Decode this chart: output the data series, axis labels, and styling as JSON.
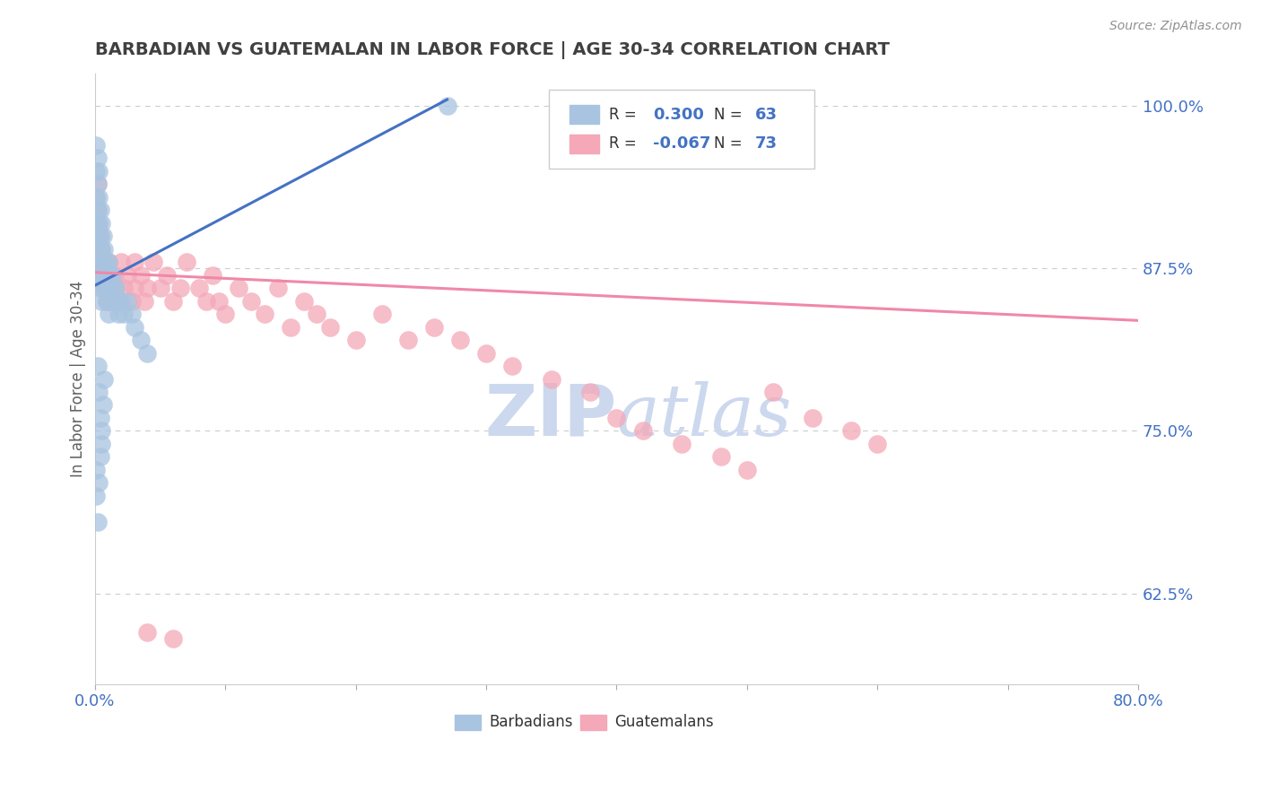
{
  "title": "BARBADIAN VS GUATEMALAN IN LABOR FORCE | AGE 30-34 CORRELATION CHART",
  "source_text": "Source: ZipAtlas.com",
  "ylabel": "In Labor Force | Age 30-34",
  "xlim": [
    0.0,
    0.8
  ],
  "ylim": [
    0.555,
    1.025
  ],
  "ytick_values": [
    0.625,
    0.75,
    0.875,
    1.0
  ],
  "ytick_labels": [
    "62.5%",
    "75.0%",
    "87.5%",
    "100.0%"
  ],
  "barbadian_R": 0.3,
  "barbadian_N": 63,
  "guatemalan_R": -0.067,
  "guatemalan_N": 73,
  "barbadian_color": "#a8c4e0",
  "guatemalan_color": "#f4a8b8",
  "barbadian_line_color": "#4472c4",
  "guatemalan_line_color": "#f088a8",
  "watermark_color": "#ccd8ee",
  "legend_r_color": "#4472c4",
  "background_color": "#ffffff",
  "grid_color": "#cccccc",
  "title_color": "#404040",
  "axis_label_color": "#4472c4",
  "barb_x": [
    0.001,
    0.001,
    0.001,
    0.001,
    0.002,
    0.002,
    0.002,
    0.002,
    0.002,
    0.003,
    0.003,
    0.003,
    0.003,
    0.003,
    0.004,
    0.004,
    0.004,
    0.004,
    0.005,
    0.005,
    0.005,
    0.005,
    0.006,
    0.006,
    0.006,
    0.007,
    0.007,
    0.008,
    0.008,
    0.009,
    0.009,
    0.01,
    0.01,
    0.01,
    0.011,
    0.011,
    0.012,
    0.013,
    0.014,
    0.015,
    0.016,
    0.017,
    0.018,
    0.02,
    0.022,
    0.025,
    0.028,
    0.03,
    0.035,
    0.04,
    0.002,
    0.003,
    0.004,
    0.005,
    0.001,
    0.001,
    0.002,
    0.003,
    0.004,
    0.005,
    0.006,
    0.007,
    0.27
  ],
  "barb_y": [
    0.97,
    0.95,
    0.93,
    0.91,
    0.96,
    0.94,
    0.92,
    0.9,
    0.88,
    0.95,
    0.93,
    0.91,
    0.89,
    0.87,
    0.92,
    0.9,
    0.88,
    0.86,
    0.91,
    0.89,
    0.87,
    0.85,
    0.9,
    0.88,
    0.86,
    0.89,
    0.87,
    0.88,
    0.86,
    0.87,
    0.85,
    0.88,
    0.86,
    0.84,
    0.87,
    0.85,
    0.86,
    0.87,
    0.86,
    0.85,
    0.86,
    0.85,
    0.84,
    0.85,
    0.84,
    0.85,
    0.84,
    0.83,
    0.82,
    0.81,
    0.8,
    0.78,
    0.76,
    0.74,
    0.72,
    0.7,
    0.68,
    0.71,
    0.73,
    0.75,
    0.77,
    0.79,
    1.0
  ],
  "guat_x": [
    0.001,
    0.001,
    0.002,
    0.002,
    0.002,
    0.003,
    0.003,
    0.003,
    0.004,
    0.004,
    0.005,
    0.005,
    0.006,
    0.006,
    0.007,
    0.008,
    0.009,
    0.01,
    0.01,
    0.011,
    0.012,
    0.013,
    0.015,
    0.016,
    0.018,
    0.02,
    0.022,
    0.025,
    0.028,
    0.03,
    0.03,
    0.035,
    0.038,
    0.04,
    0.045,
    0.05,
    0.055,
    0.06,
    0.065,
    0.07,
    0.08,
    0.085,
    0.09,
    0.095,
    0.1,
    0.11,
    0.12,
    0.13,
    0.14,
    0.15,
    0.16,
    0.17,
    0.18,
    0.2,
    0.22,
    0.24,
    0.26,
    0.28,
    0.3,
    0.32,
    0.35,
    0.38,
    0.4,
    0.42,
    0.45,
    0.48,
    0.5,
    0.52,
    0.55,
    0.58,
    0.6,
    0.04,
    0.06
  ],
  "guat_y": [
    0.93,
    0.91,
    0.94,
    0.92,
    0.9,
    0.91,
    0.89,
    0.87,
    0.9,
    0.88,
    0.89,
    0.87,
    0.88,
    0.86,
    0.87,
    0.86,
    0.85,
    0.88,
    0.86,
    0.87,
    0.86,
    0.85,
    0.87,
    0.86,
    0.85,
    0.88,
    0.86,
    0.87,
    0.85,
    0.88,
    0.86,
    0.87,
    0.85,
    0.86,
    0.88,
    0.86,
    0.87,
    0.85,
    0.86,
    0.88,
    0.86,
    0.85,
    0.87,
    0.85,
    0.84,
    0.86,
    0.85,
    0.84,
    0.86,
    0.83,
    0.85,
    0.84,
    0.83,
    0.82,
    0.84,
    0.82,
    0.83,
    0.82,
    0.81,
    0.8,
    0.79,
    0.78,
    0.76,
    0.75,
    0.74,
    0.73,
    0.72,
    0.78,
    0.76,
    0.75,
    0.74,
    0.595,
    0.59
  ],
  "barb_trendline_x": [
    0.0,
    0.27
  ],
  "barb_trendline_y": [
    0.862,
    1.005
  ],
  "guat_trendline_x": [
    0.0,
    0.8
  ],
  "guat_trendline_y": [
    0.872,
    0.835
  ]
}
